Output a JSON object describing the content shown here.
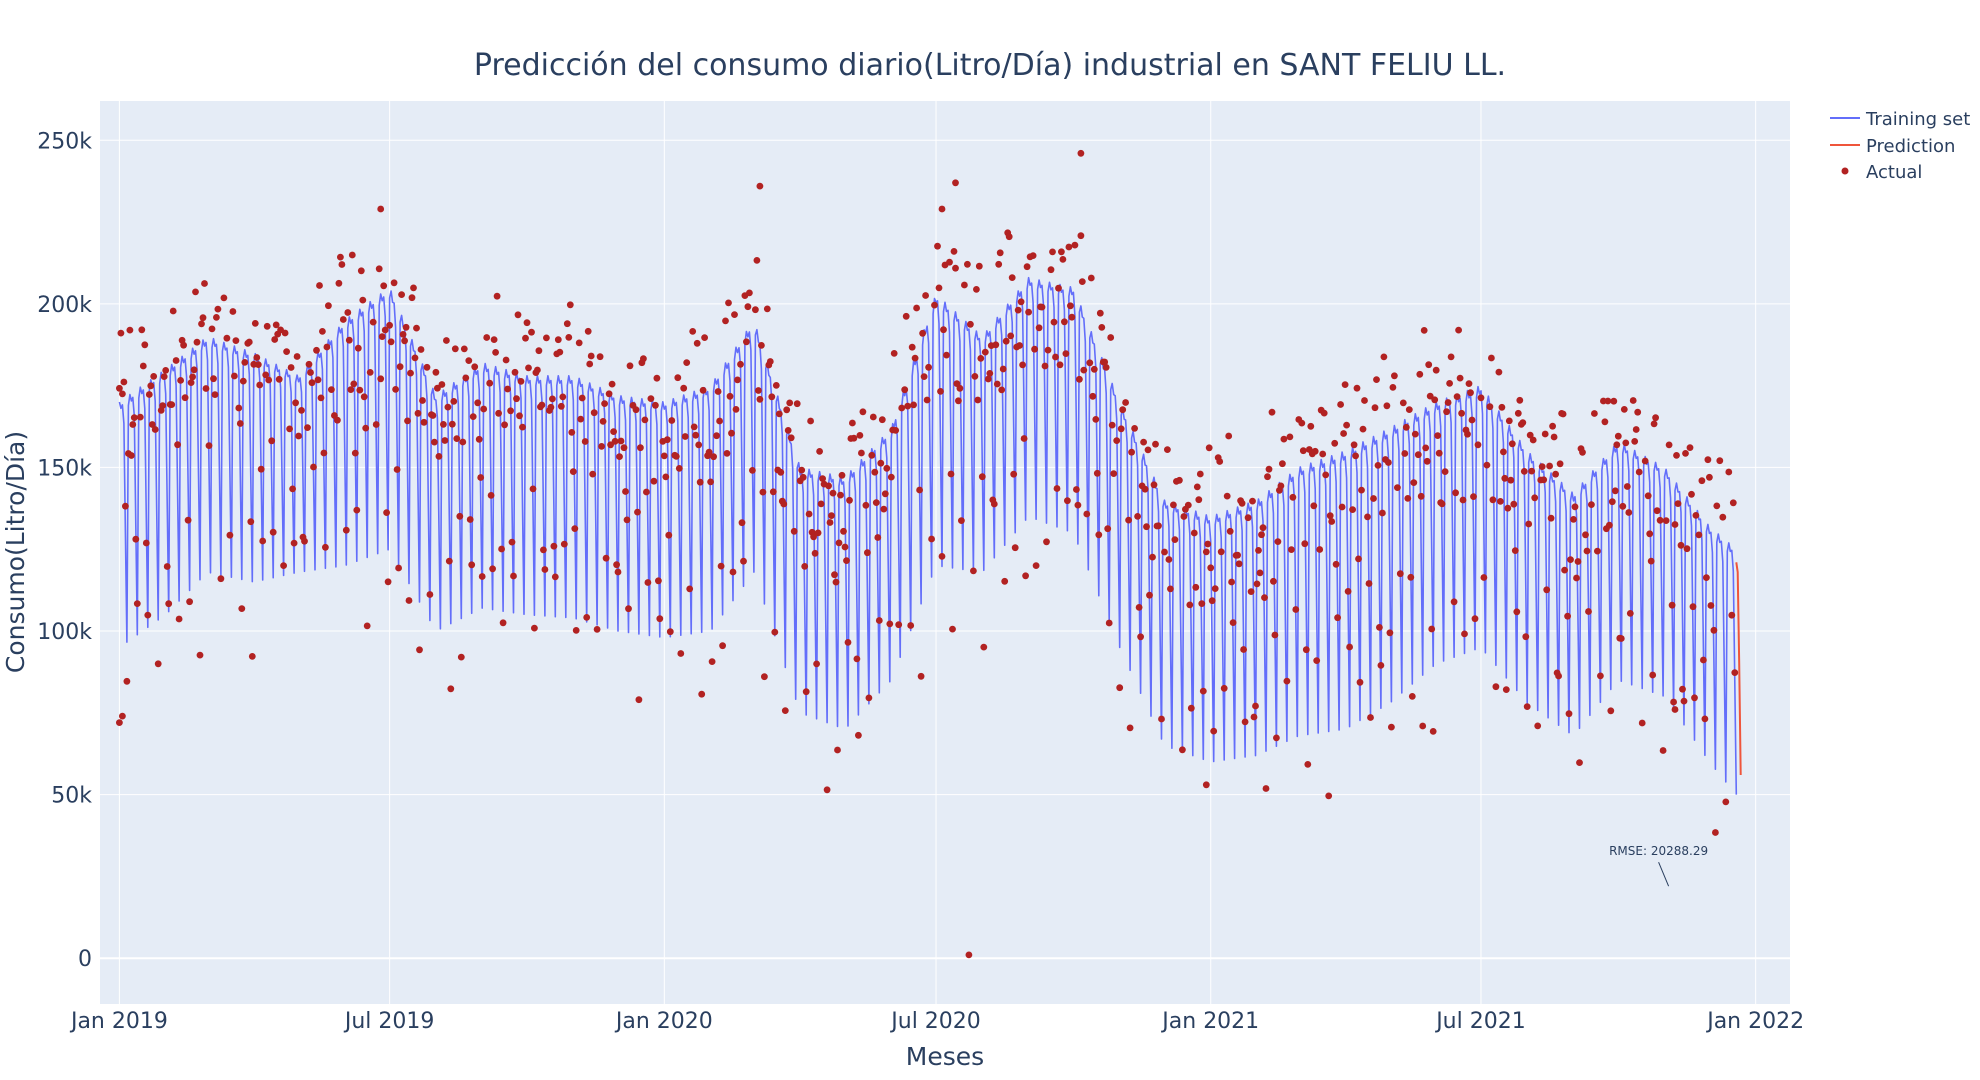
{
  "chart_data": {
    "type": "line",
    "title": "Predicción del consumo diario(Litro/Día) industrial en SANT FELIU LL.",
    "xlabel": "Meses",
    "ylabel": "Consumo(Litro/Día)",
    "x_ticks": [
      "Jan 2019",
      "Jul 2019",
      "Jan 2020",
      "Jul 2020",
      "Jan 2021",
      "Jul 2021",
      "Jan 2022"
    ],
    "x_tick_dates": [
      "2019-01-01",
      "2019-07-01",
      "2020-01-01",
      "2020-07-01",
      "2021-01-01",
      "2021-07-01",
      "2022-01-01"
    ],
    "y_ticks": [
      "0",
      "50k",
      "100k",
      "150k",
      "200k",
      "250k"
    ],
    "y_tick_values": [
      0,
      50000,
      100000,
      150000,
      200000,
      250000
    ],
    "xlim": [
      "2018-12-19",
      "2022-01-24"
    ],
    "ylim": [
      -14000,
      262000
    ],
    "grid": true,
    "legend_position": "top-right",
    "colors": {
      "training": "#636efa",
      "prediction": "#ef553b",
      "actual": "#b22222",
      "plot_bg": "#e5ecf6",
      "grid": "#ffffff"
    },
    "series": [
      {
        "name": "Training set",
        "mode": "line",
        "description": "Daily fitted values with weekly cycle; envelope given as monthly weekday peak (high) and weekend trough (low)",
        "start": "2019-01-01",
        "end": "2021-12-19",
        "envelope_dates": [
          "2019-01-01",
          "2019-02-01",
          "2019-03-01",
          "2019-04-01",
          "2019-05-01",
          "2019-06-01",
          "2019-07-01",
          "2019-08-01",
          "2019-09-01",
          "2019-10-01",
          "2019-11-01",
          "2019-12-01",
          "2020-01-01",
          "2020-02-01",
          "2020-03-01",
          "2020-04-01",
          "2020-05-01",
          "2020-06-01",
          "2020-07-01",
          "2020-08-01",
          "2020-09-01",
          "2020-10-01",
          "2020-11-01",
          "2020-12-01",
          "2021-01-01",
          "2021-02-01",
          "2021-03-01",
          "2021-04-01",
          "2021-05-01",
          "2021-06-01",
          "2021-07-01",
          "2021-08-01",
          "2021-09-01",
          "2021-10-01",
          "2021-11-01",
          "2021-12-01",
          "2021-12-19"
        ],
        "high": [
          170000,
          180000,
          190000,
          185000,
          178000,
          195000,
          205000,
          172000,
          182000,
          178000,
          178000,
          172000,
          170000,
          175000,
          195000,
          150000,
          147000,
          162000,
          203000,
          190000,
          208000,
          205000,
          170000,
          140000,
          135000,
          140000,
          150000,
          155000,
          162000,
          170000,
          175000,
          155000,
          142000,
          158000,
          150000,
          132000,
          125000
        ],
        "low": [
          95000,
          105000,
          118000,
          115000,
          118000,
          120000,
          125000,
          100000,
          107000,
          105000,
          104000,
          100000,
          98000,
          100000,
          118000,
          75000,
          70000,
          85000,
          120000,
          118000,
          135000,
          130000,
          95000,
          65000,
          60000,
          62000,
          68000,
          70000,
          78000,
          90000,
          95000,
          78000,
          68000,
          85000,
          80000,
          60000,
          50000
        ]
      },
      {
        "name": "Prediction",
        "mode": "line",
        "x": [
          "2021-12-19",
          "2021-12-20",
          "2021-12-21",
          "2021-12-22"
        ],
        "y": [
          121000,
          118000,
          90000,
          56000
        ]
      },
      {
        "name": "Actual",
        "mode": "markers",
        "description": "Daily observed values (scattered around the training envelope), including outliers",
        "outliers": [
          {
            "x": "2019-01-01",
            "y": 72000
          },
          {
            "x": "2019-01-03",
            "y": 74000
          },
          {
            "x": "2019-06-25",
            "y": 229000
          },
          {
            "x": "2020-03-05",
            "y": 236000
          },
          {
            "x": "2020-07-05",
            "y": 229000
          },
          {
            "x": "2020-07-14",
            "y": 237000
          },
          {
            "x": "2020-07-23",
            "y": 1000
          },
          {
            "x": "2020-10-06",
            "y": 246000
          },
          {
            "x": "2020-12-29",
            "y": 53000
          },
          {
            "x": "2021-11-08",
            "y": 76000
          }
        ]
      }
    ],
    "annotation": {
      "text": "RMSE: 20288.29",
      "x": "2021-10-28",
      "y": 22000
    }
  }
}
